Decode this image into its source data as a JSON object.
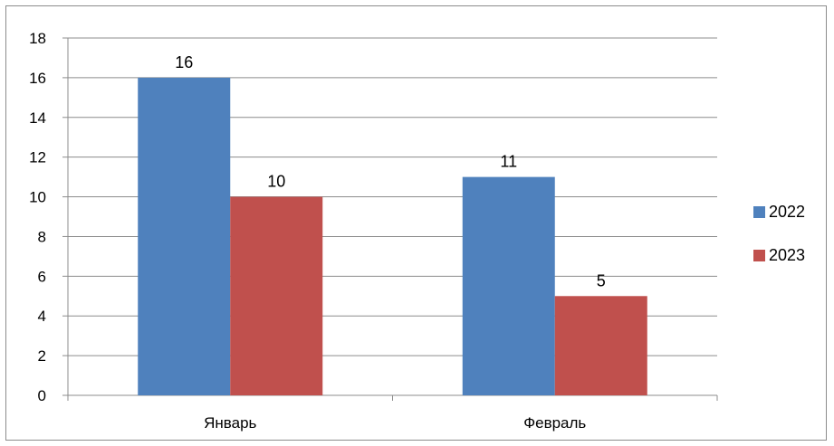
{
  "chart_data": {
    "type": "bar",
    "categories": [
      "Январь",
      "Февраль"
    ],
    "series": [
      {
        "name": "2022",
        "values": [
          16,
          11
        ],
        "color": "#4f81bd"
      },
      {
        "name": "2023",
        "values": [
          10,
          5
        ],
        "color": "#c0504d"
      }
    ],
    "ylim": [
      0,
      18
    ],
    "ytick_step": 2,
    "yticks": [
      "0",
      "2",
      "4",
      "6",
      "8",
      "10",
      "12",
      "14",
      "16",
      "18"
    ],
    "data_labels": true,
    "grid": true,
    "legend_position": "right",
    "title": "",
    "xlabel": "",
    "ylabel": ""
  }
}
